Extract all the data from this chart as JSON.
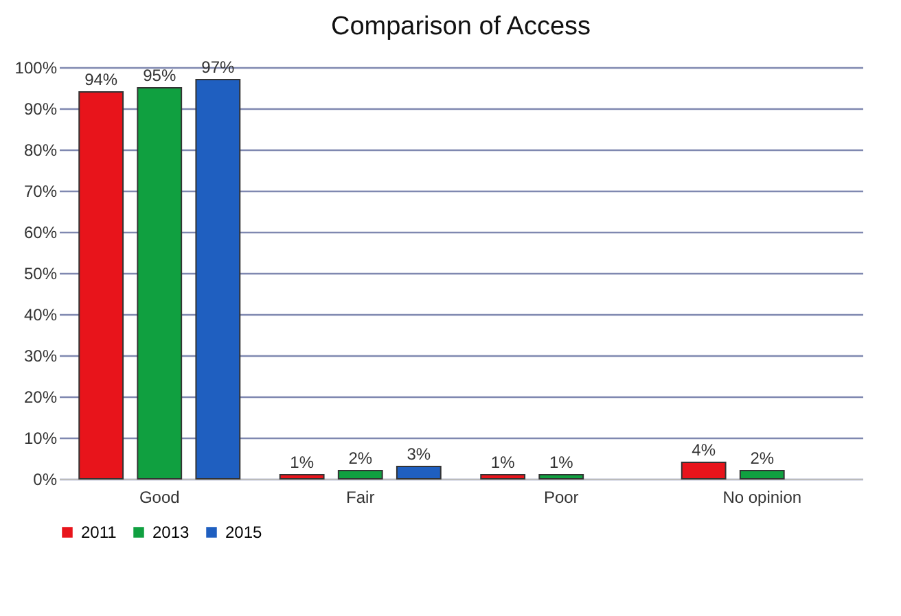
{
  "chart_data": {
    "type": "bar",
    "title": "Comparison of Access",
    "categories": [
      "Good",
      "Fair",
      "Poor",
      "No opinion"
    ],
    "series": [
      {
        "name": "2011",
        "color": "#e8141b",
        "values": [
          94,
          1,
          1,
          4
        ],
        "value_labels": [
          "94%",
          "1%",
          "1%",
          "4%"
        ]
      },
      {
        "name": "2013",
        "color": "#10a040",
        "values": [
          95,
          2,
          1,
          2
        ],
        "value_labels": [
          "95%",
          "2%",
          "1%",
          "2%"
        ]
      },
      {
        "name": "2015",
        "color": "#1f5fc0",
        "values": [
          97,
          3,
          null,
          null
        ],
        "value_labels": [
          "97%",
          "3%",
          null,
          null
        ]
      }
    ],
    "ylim": [
      0,
      100
    ],
    "yticks": [
      {
        "value": 0,
        "label": "0%"
      },
      {
        "value": 10,
        "label": "10%"
      },
      {
        "value": 20,
        "label": "20%"
      },
      {
        "value": 30,
        "label": "30%"
      },
      {
        "value": 40,
        "label": "40%"
      },
      {
        "value": 50,
        "label": "50%"
      },
      {
        "value": 60,
        "label": "60%"
      },
      {
        "value": 70,
        "label": "70%"
      },
      {
        "value": 80,
        "label": "80%"
      },
      {
        "value": 90,
        "label": "90%"
      },
      {
        "value": 100,
        "label": "100%"
      }
    ],
    "grid": "y",
    "legend": "bottom"
  }
}
